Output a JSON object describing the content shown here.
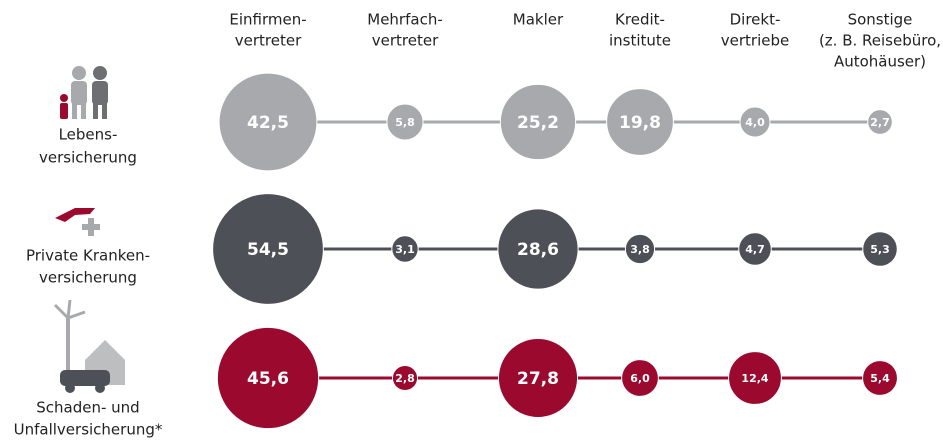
{
  "chart_data": {
    "type": "bubble",
    "categories": [
      [
        "Einfirmen-",
        "vertreter"
      ],
      [
        "Mehrfach-",
        "vertreter"
      ],
      [
        "Makler"
      ],
      [
        "Kredit-",
        "institute"
      ],
      [
        "Direkt-",
        "vertriebe"
      ],
      [
        "Sonstige",
        "(z. B. Reisebüro,",
        "Autohäuser)"
      ]
    ],
    "series": [
      {
        "name": [
          "Lebens-",
          "versicherung"
        ],
        "color": "#a7a9ac",
        "values": [
          42.5,
          5.8,
          25.2,
          19.8,
          4.0,
          2.7
        ],
        "value_labels": [
          "42,5",
          "5,8",
          "25,2",
          "19,8",
          "4,0",
          "2,7"
        ]
      },
      {
        "name": [
          "Private Kranken-",
          "versicherung"
        ],
        "color": "#4d5057",
        "values": [
          54.5,
          3.1,
          28.6,
          3.8,
          4.7,
          5.3
        ],
        "value_labels": [
          "54,5",
          "3,1",
          "28,6",
          "3,8",
          "4,7",
          "5,3"
        ]
      },
      {
        "name": [
          "Schaden- und",
          "Unfallversicherung*"
        ],
        "color": "#9b0a2e",
        "values": [
          45.6,
          2.8,
          27.8,
          6.0,
          12.4,
          5.4
        ],
        "value_labels": [
          "45,6",
          "2,8",
          "27,8",
          "6,0",
          "12,4",
          "5,4"
        ]
      }
    ]
  }
}
